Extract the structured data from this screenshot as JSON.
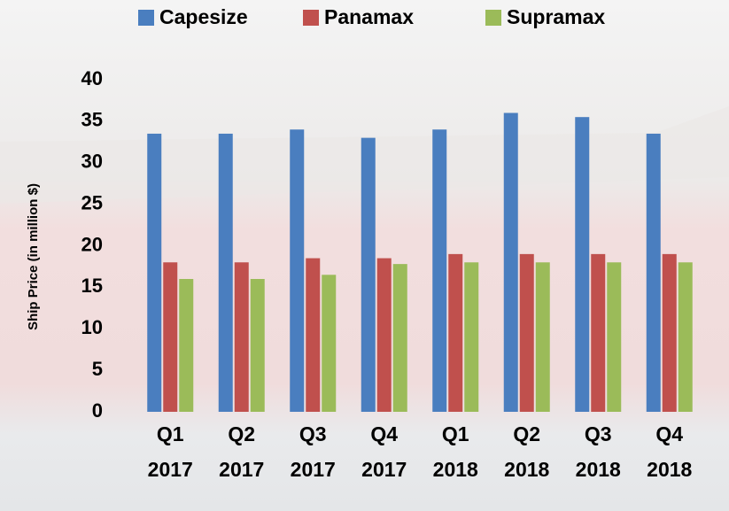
{
  "chart_data": {
    "type": "bar",
    "y_axis_label": "Ship Price (in million $)",
    "categories": [
      [
        "Q1",
        "2017"
      ],
      [
        "Q2",
        "2017"
      ],
      [
        "Q3",
        "2017"
      ],
      [
        "Q4",
        "2017"
      ],
      [
        "Q1",
        "2018"
      ],
      [
        "Q2",
        "2018"
      ],
      [
        "Q3",
        "2018"
      ],
      [
        "Q4",
        "2018"
      ]
    ],
    "series": [
      {
        "name": "Capesize",
        "color": "#4a7ebf",
        "values": [
          33.5,
          33.5,
          34,
          33,
          34,
          36,
          35.5,
          33.5
        ]
      },
      {
        "name": "Panamax",
        "color": "#c0504d",
        "values": [
          18,
          18,
          18.5,
          18.5,
          19,
          19,
          19,
          19
        ]
      },
      {
        "name": "Supramax",
        "color": "#9bbb59",
        "values": [
          16,
          16,
          16.5,
          17.8,
          18,
          18,
          18,
          18
        ]
      }
    ],
    "ylim": [
      0,
      40
    ],
    "yticks": [
      0,
      5,
      10,
      15,
      20,
      25,
      30,
      35,
      40
    ],
    "legend": "top"
  }
}
